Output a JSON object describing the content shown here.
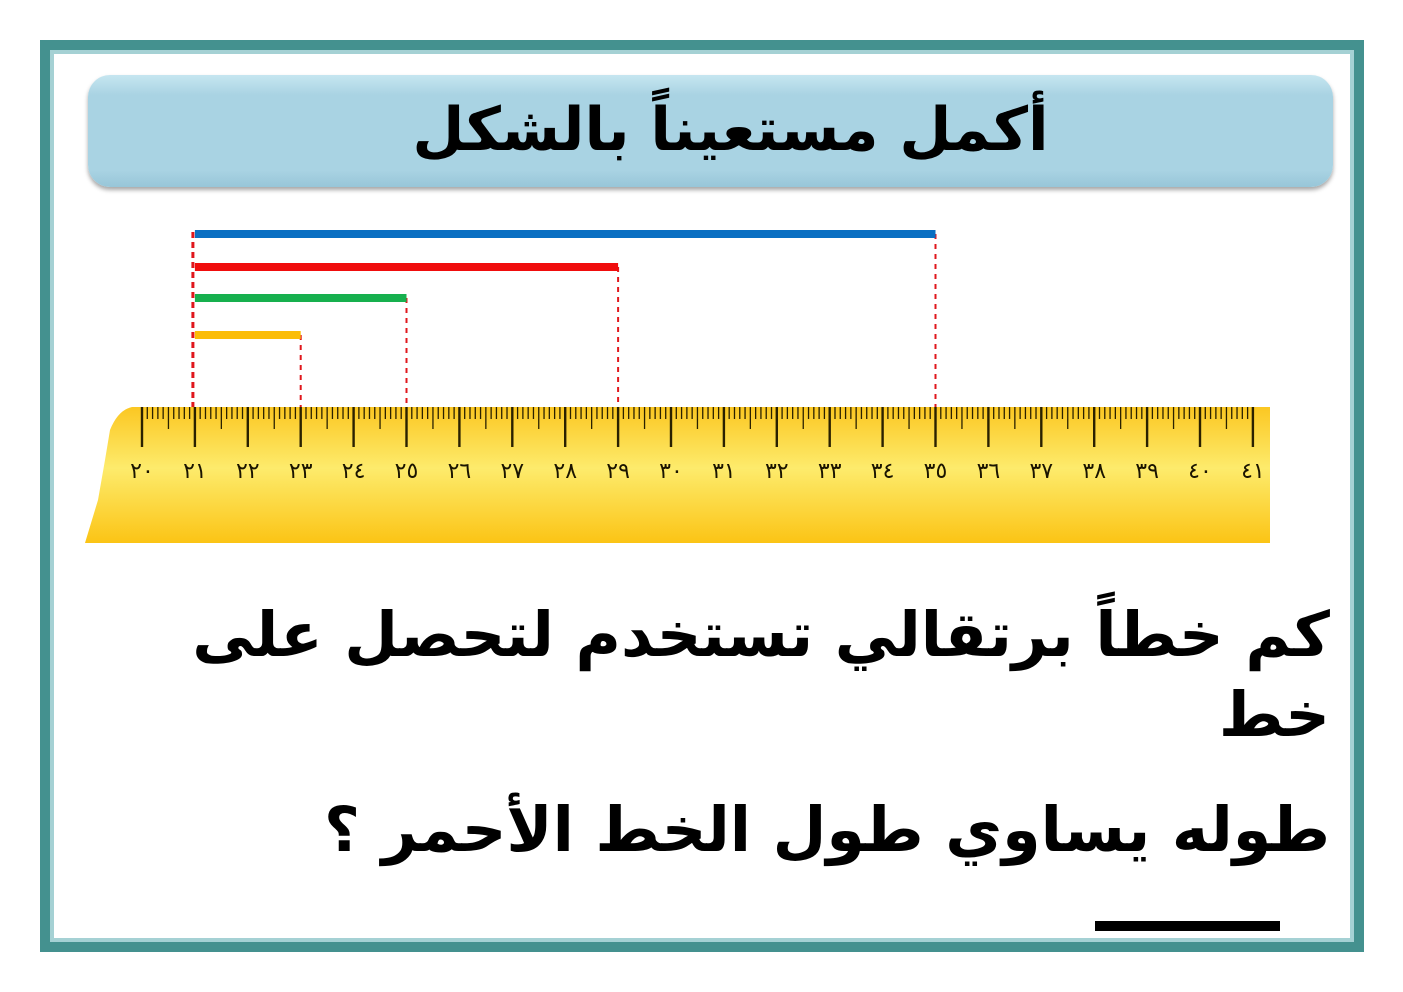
{
  "title": "أكمل مستعيناً بالشكل",
  "question": {
    "line1": "كم خطاً برتقالي تستخدم لتحصل على خط",
    "line2": "طوله يساوي طول الخط الأحمر ؟"
  },
  "ruler": {
    "start": 20,
    "end": 41,
    "labels": [
      "٢٠",
      "٢١",
      "٢٢",
      "٢٣",
      "٢٤",
      "٢٥",
      "٢٦",
      "٢٧",
      "٢٨",
      "٢٩",
      "٣٠",
      "٣١",
      "٣٢",
      "٣٣",
      "٣٤",
      "٣٥",
      "٣٦",
      "٣٧",
      "٣٨",
      "٣٩",
      "٤٠",
      "٤١"
    ]
  },
  "segments": [
    {
      "color": "blue",
      "hex": "#0a6fc2",
      "from": 21,
      "to": 35
    },
    {
      "color": "red",
      "hex": "#f00d0d",
      "from": 21,
      "to": 29
    },
    {
      "color": "green",
      "hex": "#16b04e",
      "from": 21,
      "to": 25
    },
    {
      "color": "orange",
      "hex": "#fbbd08",
      "from": 21,
      "to": 23
    }
  ],
  "colors": {
    "frame": "#44918f",
    "title_bg": "#a9d3e3",
    "ruler": "#fbd43a",
    "guide": "#e0171d"
  }
}
